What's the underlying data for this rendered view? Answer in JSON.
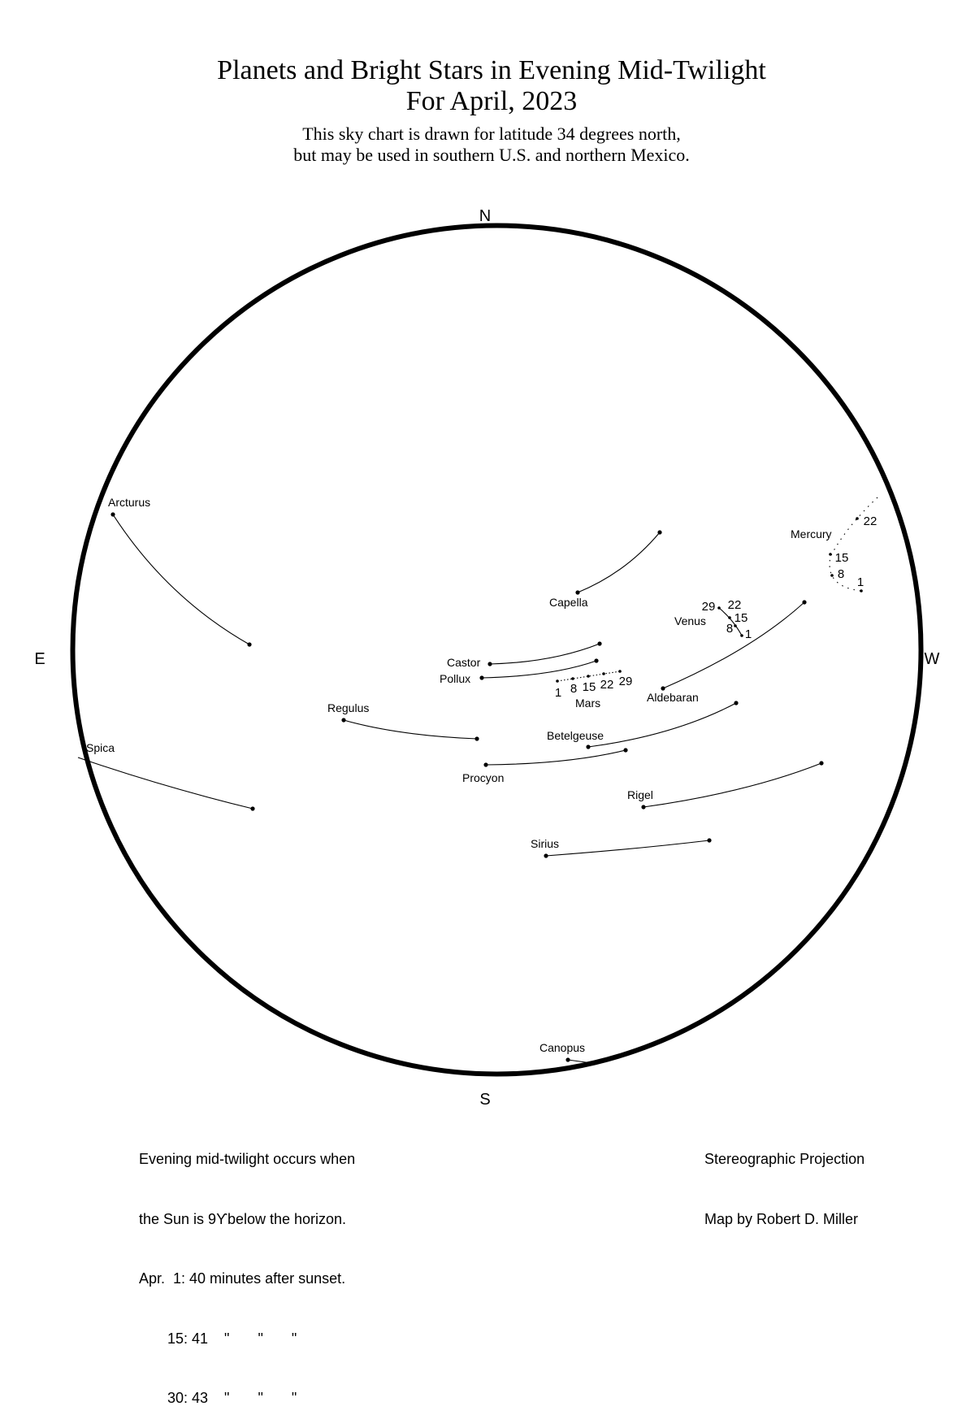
{
  "title": {
    "line1": "Planets and Bright Stars in Evening Mid-Twilight",
    "line2": "For April, 2023",
    "subtitle1": "This sky chart is drawn for latitude 34 degrees north,",
    "subtitle2": "but may be used in southern U.S. and northern Mexico."
  },
  "directions": {
    "north": "N",
    "south": "S",
    "east": "E",
    "west": "W"
  },
  "stars": {
    "arcturus": "Arcturus",
    "capella": "Capella",
    "castor": "Castor",
    "pollux": "Pollux",
    "aldebaran": "Aldebaran",
    "regulus": "Regulus",
    "betelgeuse": "Betelgeuse",
    "procyon": "Procyon",
    "rigel": "Rigel",
    "sirius": "Sirius",
    "spica": "Spica",
    "canopus": "Canopus"
  },
  "planets": {
    "mars": {
      "name": "Mars",
      "dates": [
        "1",
        "8",
        "15",
        "22",
        "29"
      ]
    },
    "venus": {
      "name": "Venus",
      "dates": [
        "1",
        "8",
        "15",
        "22",
        "29"
      ]
    },
    "mercury": {
      "name": "Mercury",
      "dates": [
        "1",
        "8",
        "15",
        "22"
      ]
    }
  },
  "notes": {
    "left": [
      "Evening mid-twilight occurs when",
      "the Sun is 9ϒbelow the horizon.",
      "Apr.  1: 40 minutes after sunset.",
      "       15: 41    \"       \"       \"",
      "       30: 43    \"       \"       \""
    ],
    "right": [
      "Stereographic Projection",
      "Map by Robert D. Miller"
    ]
  }
}
